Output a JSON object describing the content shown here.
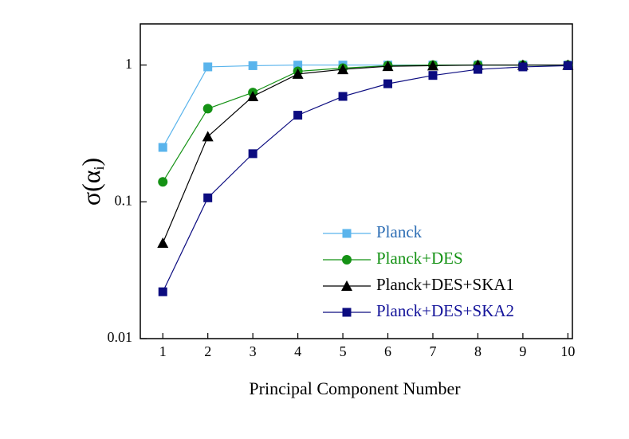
{
  "chart_data": {
    "type": "line",
    "xlabel": "Principal Component Number",
    "ylabel": {
      "main": "σ(α",
      "sub": "i",
      "close": ")"
    },
    "x": [
      1,
      2,
      3,
      4,
      5,
      6,
      7,
      8,
      9,
      10
    ],
    "xlim": [
      0.5,
      10.1
    ],
    "xticks": [
      1,
      2,
      3,
      4,
      5,
      6,
      7,
      8,
      9,
      10
    ],
    "ylim": [
      0.01,
      2
    ],
    "yticks": [
      0.01,
      0.1,
      1
    ],
    "log_y": true,
    "legend": "lower right",
    "series": [
      {
        "name": "Planck",
        "color": "#5ab4ec",
        "label_color": "#2f6fb5",
        "marker": "square",
        "values": [
          0.25,
          0.97,
          0.99,
          1,
          1,
          1,
          1,
          1,
          1,
          1
        ]
      },
      {
        "name": "Planck+DES",
        "color": "#159215",
        "label_color": "#159215",
        "marker": "circle",
        "values": [
          0.14,
          0.48,
          0.63,
          0.9,
          0.95,
          0.99,
          1,
          1,
          1,
          1
        ]
      },
      {
        "name": "Planck+DES+SKA1",
        "color": "#000000",
        "label_color": "#000000",
        "marker": "triangle",
        "values": [
          0.05,
          0.3,
          0.59,
          0.86,
          0.93,
          0.98,
          0.99,
          1,
          1,
          1
        ]
      },
      {
        "name": "Planck+DES+SKA2",
        "color": "#0c0c80",
        "label_color": "#14149a",
        "marker": "square",
        "values": [
          0.022,
          0.107,
          0.225,
          0.43,
          0.59,
          0.73,
          0.84,
          0.93,
          0.97,
          0.99
        ]
      }
    ]
  }
}
